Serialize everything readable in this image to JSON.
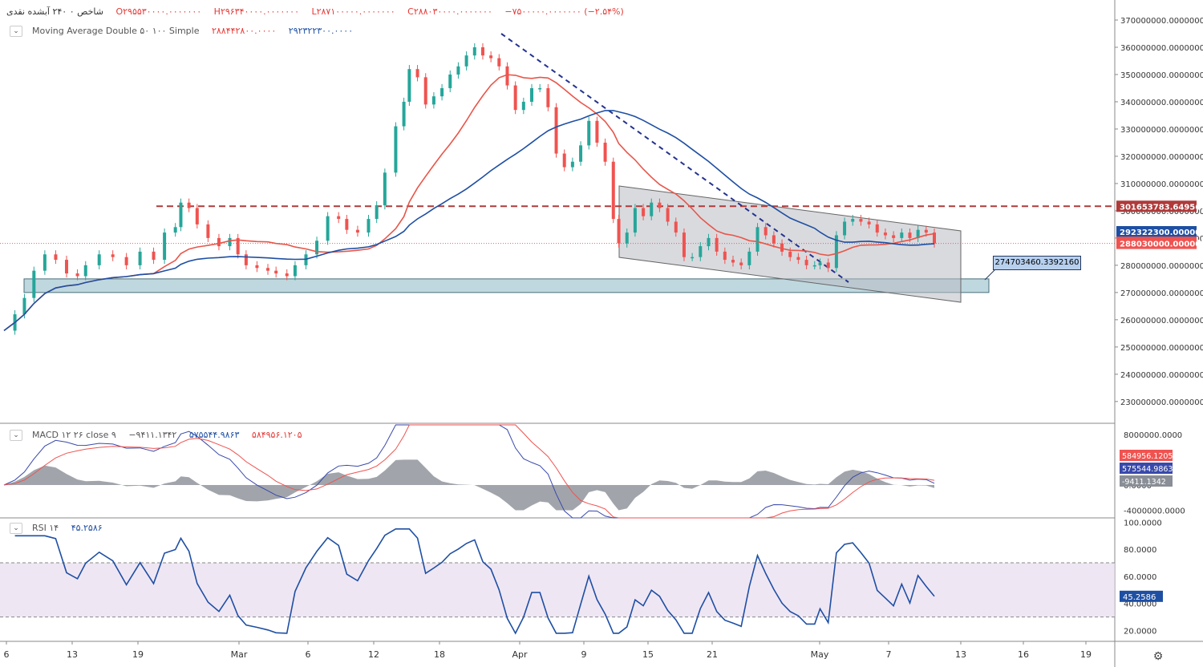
{
  "header": {
    "symbol": "شاخص ۰ ۲۴۰ آبشده نقدی",
    "open": "O۲۹۵۵۳۰۰۰۰.۰۰۰۰۰۰۰",
    "high": "H۲۹۶۳۴۰۰۰۰.۰۰۰۰۰۰۰",
    "low": "L۲۸۷۱۰۰۰۰۰.۰۰۰۰۰۰۰",
    "close": "C۲۸۸۰۳۰۰۰۰.۰۰۰۰۰۰۰",
    "change": "−۷۵۰۰۰۰۰.۰۰۰۰۰۰۰ (−۲.۵۴%)"
  },
  "ma_legend": {
    "label": "Moving Average Double ۵۰ ۱۰۰ Simple",
    "ma1": "۲۸۸۴۴۲۸۰۰.۰۰۰۰",
    "ma2": "۲۹۲۳۲۲۳۰۰.۰۰۰۰"
  },
  "macd_legend": {
    "label": "MACD ۱۲ ۲۶ close ۹",
    "hist": "−۹۴۱۱.۱۳۴۲",
    "macd": "۵۷۵۵۴۴.۹۸۶۳",
    "signal": "۵۸۴۹۵۶.۱۲۰۵"
  },
  "rsi_legend": {
    "label": "RSI ۱۴",
    "value": "۴۵.۲۵۸۶"
  },
  "callout": "274703460.3392160",
  "colors": {
    "up": "#26a69a",
    "down": "#ef5350",
    "ma_red": "#e8564a",
    "ma_blue": "#1e4fa3",
    "macd": "#3949ab",
    "signal": "#ef5350",
    "rsi": "#1e4fa3"
  },
  "chart_data": [
    {
      "type": "candlestick",
      "title": "شاخص آبشده نقدی 240",
      "ylim": [
        222000000,
        375000000
      ],
      "y_ticks": [
        230000000,
        240000000,
        250000000,
        260000000,
        270000000,
        280000000,
        290000000,
        300000000,
        310000000,
        320000000,
        330000000,
        340000000,
        350000000,
        360000000,
        370000000
      ],
      "y_tick_labels": [
        "230000000.0000000",
        "240000000.0000000",
        "250000000.0000000",
        "260000000.0000000",
        "270000000.0000000",
        "280000000.0000000",
        "290000000.0000000",
        "300000000.0000000",
        "310000000.0000000",
        "320000000.0000000",
        "330000000.0000000",
        "340000000.0000000",
        "350000000.0000000",
        "360000000.0000000",
        "370000000.0000000"
      ],
      "x_labels": [
        "6",
        "13",
        "19",
        "Mar",
        "6",
        "12",
        "18",
        "Apr",
        "9",
        "15",
        "21",
        "May",
        "7",
        "13",
        "16",
        "19"
      ],
      "close_path": [
        [
          0,
          256000000
        ],
        [
          8,
          262000000
        ],
        [
          15,
          268000000
        ],
        [
          22,
          278000000
        ],
        [
          30,
          284000000
        ],
        [
          38,
          282000000
        ],
        [
          46,
          277000000
        ],
        [
          54,
          276000000
        ],
        [
          60,
          280000000
        ],
        [
          70,
          284000000
        ],
        [
          80,
          283000000
        ],
        [
          90,
          280000000
        ],
        [
          100,
          285000000
        ],
        [
          110,
          282000000
        ],
        [
          118,
          292000000
        ],
        [
          126,
          294000000
        ],
        [
          130,
          303000000
        ],
        [
          136,
          301000000
        ],
        [
          142,
          295000000
        ],
        [
          150,
          290000000
        ],
        [
          158,
          287000000
        ],
        [
          166,
          290000000
        ],
        [
          172,
          284000000
        ],
        [
          178,
          280000000
        ],
        [
          186,
          279000000
        ],
        [
          194,
          278000000
        ],
        [
          200,
          277000000
        ],
        [
          208,
          276000000
        ],
        [
          214,
          280000000
        ],
        [
          222,
          284000000
        ],
        [
          230,
          289000000
        ],
        [
          238,
          298000000
        ],
        [
          246,
          297000000
        ],
        [
          252,
          293000000
        ],
        [
          260,
          292000000
        ],
        [
          268,
          297000000
        ],
        [
          274,
          302000000
        ],
        [
          280,
          314000000
        ],
        [
          288,
          331000000
        ],
        [
          294,
          340000000
        ],
        [
          298,
          352000000
        ],
        [
          304,
          349000000
        ],
        [
          310,
          339000000
        ],
        [
          316,
          342000000
        ],
        [
          322,
          345000000
        ],
        [
          328,
          350000000
        ],
        [
          334,
          353000000
        ],
        [
          340,
          357000000
        ],
        [
          346,
          360000000
        ],
        [
          352,
          357000000
        ],
        [
          358,
          356000000
        ],
        [
          364,
          353000000
        ],
        [
          370,
          346000000
        ],
        [
          376,
          337000000
        ],
        [
          382,
          340000000
        ],
        [
          388,
          345000000
        ],
        [
          394,
          345000000
        ],
        [
          400,
          338000000
        ],
        [
          406,
          321000000
        ],
        [
          412,
          316000000
        ],
        [
          418,
          318000000
        ],
        [
          424,
          324000000
        ],
        [
          430,
          333000000
        ],
        [
          436,
          325000000
        ],
        [
          442,
          318000000
        ],
        [
          448,
          297000000
        ],
        [
          452,
          288000000
        ],
        [
          458,
          292000000
        ],
        [
          464,
          301000000
        ],
        [
          470,
          298000000
        ],
        [
          476,
          303000000
        ],
        [
          482,
          301000000
        ],
        [
          488,
          296000000
        ],
        [
          494,
          292000000
        ],
        [
          500,
          283000000
        ],
        [
          506,
          283000000
        ],
        [
          512,
          287000000
        ],
        [
          518,
          290000000
        ],
        [
          524,
          285000000
        ],
        [
          530,
          282000000
        ],
        [
          536,
          281000000
        ],
        [
          542,
          280000000
        ],
        [
          548,
          285000000
        ],
        [
          554,
          294000000
        ],
        [
          560,
          291000000
        ],
        [
          566,
          288000000
        ],
        [
          572,
          285000000
        ],
        [
          578,
          283000000
        ],
        [
          584,
          282000000
        ],
        [
          590,
          280000000
        ],
        [
          596,
          280000000
        ],
        [
          600,
          281000000
        ],
        [
          606,
          279000000
        ],
        [
          612,
          291000000
        ],
        [
          618,
          296000000
        ],
        [
          624,
          297000000
        ],
        [
          630,
          296000000
        ],
        [
          636,
          295000000
        ],
        [
          642,
          292000000
        ],
        [
          648,
          291000000
        ],
        [
          654,
          290000000
        ],
        [
          660,
          292000000
        ],
        [
          666,
          290000000
        ],
        [
          672,
          293000000
        ],
        [
          678,
          292000000
        ],
        [
          684,
          288000000
        ]
      ],
      "moving_averages": [
        {
          "name": "MA 50",
          "value": 288442800,
          "label": "288442800.0000000"
        },
        {
          "name": "MA 100",
          "value": 292322300,
          "label": "292322300.0000000"
        }
      ],
      "annotations": [
        {
          "type": "horizontal-dashed",
          "value": 301653783.6495672,
          "label": "301653783.6495672"
        },
        {
          "type": "horizontal-dotted",
          "value": 288030000,
          "label": "288030000.0000000"
        },
        {
          "type": "support-zone",
          "from": 270000000,
          "to": 275000000
        },
        {
          "type": "descending-channel"
        },
        {
          "type": "trendline-dashed"
        },
        {
          "type": "callout",
          "value": 274703460.339216
        }
      ]
    },
    {
      "type": "macd",
      "title": "MACD 12 26 close 9",
      "ylim": [
        -5200000,
        9500000
      ],
      "y_ticks": [
        8000000,
        0,
        -4000000
      ],
      "y_tick_labels": [
        "8000000.0000",
        "0.0000",
        "-4000000.0000"
      ],
      "series": [
        {
          "name": "Signal",
          "value": 584956.1205,
          "label": "584956.1205"
        },
        {
          "name": "MACD",
          "value": 575544.9863,
          "label": "575544.9863"
        },
        {
          "name": "Histogram",
          "value": -9411.1342,
          "label": "-9411.1342"
        }
      ]
    },
    {
      "type": "rsi",
      "title": "RSI 14",
      "ylim": [
        12,
        102
      ],
      "y_ticks": [
        100,
        80,
        60,
        40,
        20
      ],
      "y_tick_labels": [
        "100.0000",
        "80.0000",
        "60.0000",
        "40.0000",
        "20.0000"
      ],
      "bands": [
        30,
        70
      ],
      "current": 45.2586,
      "current_label": "45.2586"
    }
  ]
}
